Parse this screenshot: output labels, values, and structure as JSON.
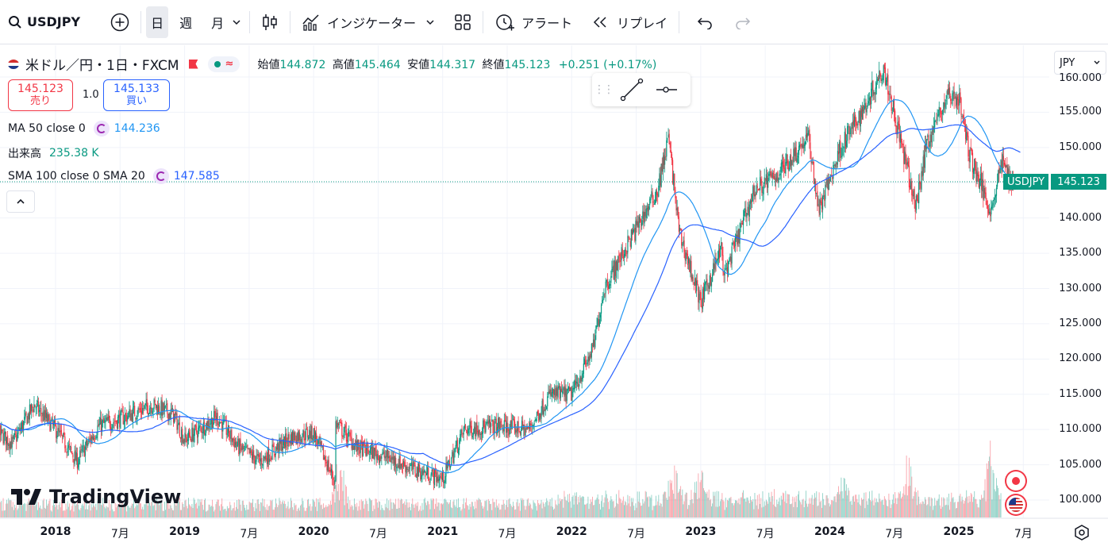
{
  "toolbar": {
    "symbol": "USDJPY",
    "tf_day": "日",
    "tf_week": "週",
    "tf_month": "月",
    "indicators_label": "インジケーター",
    "alert_label": "アラート",
    "replay_label": "リプレイ"
  },
  "legend": {
    "title": "米ドル／円・1日・FXCM",
    "open_label": "始値",
    "open": "144.872",
    "high_label": "高値",
    "high": "145.464",
    "low_label": "安値",
    "low": "144.317",
    "close_label": "終値",
    "close": "145.123",
    "change": "+0.251 (+0.17%)",
    "sell_price": "145.123",
    "sell_label": "売り",
    "buy_price": "145.133",
    "buy_label": "買い",
    "spread": "1.0",
    "ma_label": "MA 50 close 0",
    "ma_value": "144.236",
    "volume_label": "出来高",
    "volume_value": "235.38 K",
    "sma_label": "SMA 100 close 0 SMA 20",
    "sma_value": "147.585"
  },
  "axis": {
    "currency": "JPY",
    "price_tag_symbol": "USDJPY",
    "price_tag_value": "145.123",
    "price_labels": [
      "160.000",
      "155.000",
      "150.000",
      "145.000",
      "140.000",
      "135.000",
      "130.000",
      "125.000",
      "120.000",
      "115.000",
      "110.000",
      "105.000",
      "100.000"
    ],
    "time_labels": [
      {
        "text": "2018",
        "bold": true
      },
      {
        "text": "7月",
        "bold": false
      },
      {
        "text": "2019",
        "bold": true
      },
      {
        "text": "7月",
        "bold": false
      },
      {
        "text": "2020",
        "bold": true
      },
      {
        "text": "7月",
        "bold": false
      },
      {
        "text": "2021",
        "bold": true
      },
      {
        "text": "7月",
        "bold": false
      },
      {
        "text": "2022",
        "bold": true
      },
      {
        "text": "7月",
        "bold": false
      },
      {
        "text": "2023",
        "bold": true
      },
      {
        "text": "7月",
        "bold": false
      },
      {
        "text": "2024",
        "bold": true
      },
      {
        "text": "7月",
        "bold": false
      },
      {
        "text": "2025",
        "bold": true
      },
      {
        "text": "7月",
        "bold": false
      }
    ]
  },
  "logo_text": "TradingView",
  "colors": {
    "up": "#089981",
    "down": "#f23645",
    "ma": "#2196f3",
    "sma": "#2962ff"
  },
  "chart_data": {
    "type": "candlestick",
    "symbol": "USDJPY",
    "interval": "1D",
    "ylim": [
      98,
      162
    ],
    "x_start": "2017-06",
    "x_end": "2025-07",
    "price_path": [
      [
        "2017-06",
        111.5
      ],
      [
        "2017-09",
        108.0
      ],
      [
        "2017-11",
        113.5
      ],
      [
        "2018-01",
        110.0
      ],
      [
        "2018-03",
        105.5
      ],
      [
        "2018-05",
        110.5
      ],
      [
        "2018-07",
        111.5
      ],
      [
        "2018-10",
        113.5
      ],
      [
        "2018-12",
        112.0
      ],
      [
        "2019-01",
        108.5
      ],
      [
        "2019-04",
        111.8
      ],
      [
        "2019-06",
        107.5
      ],
      [
        "2019-08",
        105.5
      ],
      [
        "2019-11",
        109.0
      ],
      [
        "2020-01",
        109.5
      ],
      [
        "2020-03",
        102.5
      ],
      [
        "2020-03",
        111.0
      ],
      [
        "2020-05",
        107.5
      ],
      [
        "2020-08",
        106.0
      ],
      [
        "2020-10",
        104.5
      ],
      [
        "2021-01",
        103.0
      ],
      [
        "2021-03",
        110.0
      ],
      [
        "2021-06",
        110.5
      ],
      [
        "2021-09",
        110.0
      ],
      [
        "2021-11",
        115.0
      ],
      [
        "2022-01",
        115.0
      ],
      [
        "2022-03",
        121.5
      ],
      [
        "2022-04",
        130.0
      ],
      [
        "2022-07",
        138.5
      ],
      [
        "2022-09",
        144.0
      ],
      [
        "2022-10",
        151.5
      ],
      [
        "2022-11",
        138.0
      ],
      [
        "2023-01",
        128.0
      ],
      [
        "2023-03",
        136.0
      ],
      [
        "2023-03",
        131.0
      ],
      [
        "2023-06",
        144.0
      ],
      [
        "2023-08",
        146.0
      ],
      [
        "2023-11",
        151.5
      ],
      [
        "2023-12",
        141.0
      ],
      [
        "2024-02",
        150.0
      ],
      [
        "2024-04",
        155.0
      ],
      [
        "2024-06",
        161.5
      ],
      [
        "2024-09",
        141.5
      ],
      [
        "2024-10",
        150.5
      ],
      [
        "2024-12",
        157.5
      ],
      [
        "2025-01",
        157.0
      ],
      [
        "2025-02",
        149.0
      ],
      [
        "2025-04",
        141.0
      ],
      [
        "2025-05",
        148.0
      ],
      [
        "2025-06",
        145.1
      ]
    ]
  }
}
